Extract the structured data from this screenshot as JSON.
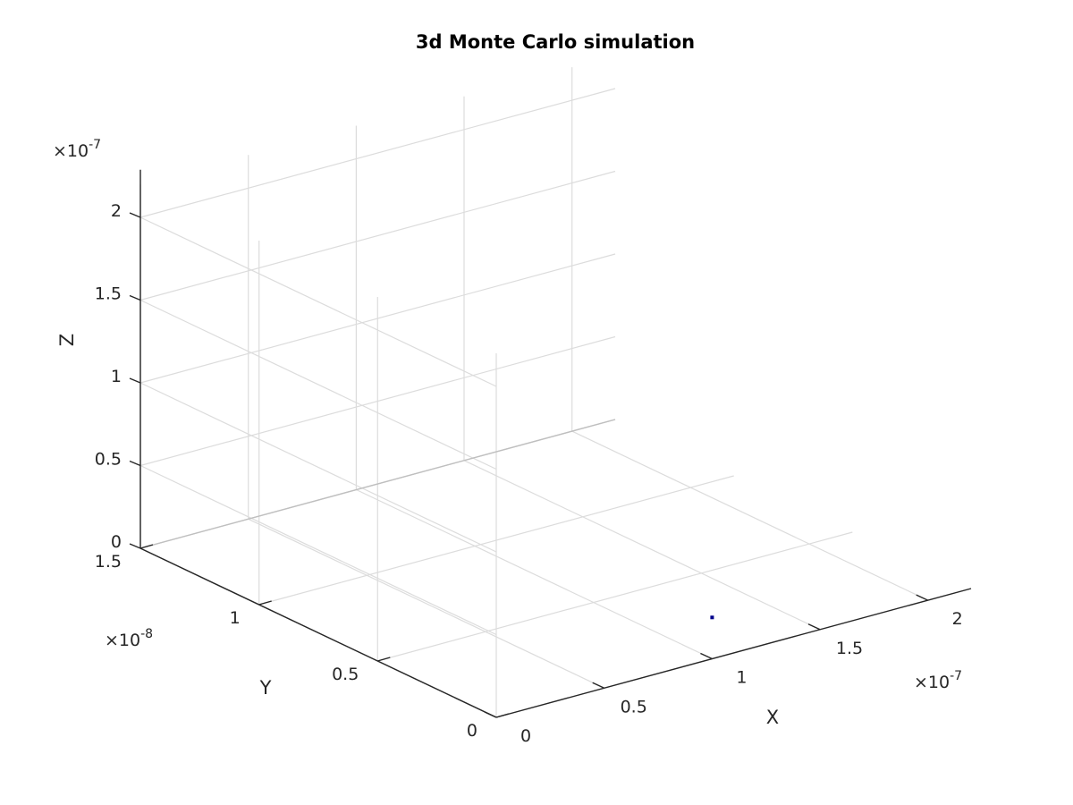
{
  "chart_data": {
    "type": "scatter",
    "title": "3d Monte Carlo simulation",
    "xlabel": "X",
    "ylabel": "Y",
    "zlabel": "Z",
    "x_multiplier": "10",
    "x_exponent": "-7",
    "y_multiplier": "10",
    "y_exponent": "-8",
    "z_multiplier": "10",
    "z_exponent": "-7",
    "xlim": [
      0,
      2.2
    ],
    "ylim": [
      0,
      1.5
    ],
    "zlim": [
      0,
      2.2
    ],
    "xticks": [
      0,
      0.5,
      1,
      1.5,
      2
    ],
    "yticks": [
      0,
      0.5,
      1,
      1.5
    ],
    "zticks": [
      0,
      0.5,
      1,
      1.5,
      2
    ],
    "xtick_labels": [
      "0",
      "0.5",
      "1",
      "1.5",
      "2"
    ],
    "ytick_labels": [
      "0",
      "0.5",
      "1",
      "1.5"
    ],
    "ztick_labels": [
      "0",
      "0.5",
      "1",
      "1.5",
      "2"
    ],
    "grid": true,
    "marker_color": "#00008b",
    "points": [
      {
        "x": 1.0,
        "y": 0.0,
        "z": 0.25
      }
    ]
  }
}
